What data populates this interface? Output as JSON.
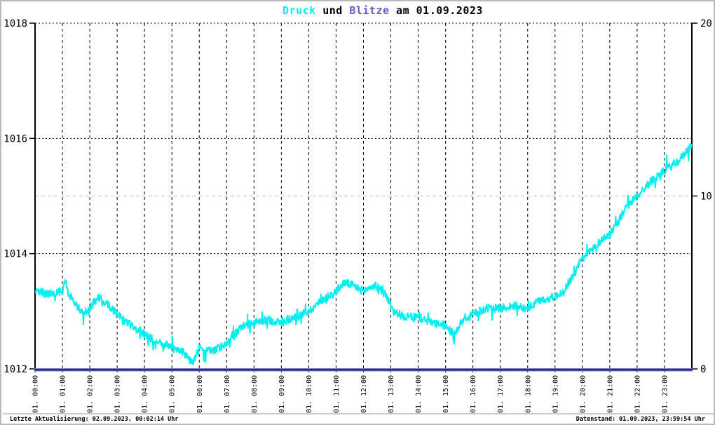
{
  "window": {
    "background": "#ffffff",
    "border_color": "#b9b9b9"
  },
  "title": {
    "druck": "Druck",
    "und": " und ",
    "blitze": "Blitze",
    "date": " am 01.09.2023",
    "druck_color": "#00EFEF",
    "blitze_color": "#6A5ACD"
  },
  "footer": {
    "left": "Letzte Aktualisierung: 02.09.2023, 00:02:14 Uhr",
    "right": "Datenstand: 01.09.2023, 23:59:54 Uhr"
  },
  "chart_data": {
    "type": "line",
    "title": "Druck und Blitze am 01.09.2023",
    "x_axis": {
      "tick_labels": [
        "01. 00:00",
        "01. 01:00",
        "01. 02:00",
        "01. 03:00",
        "01. 04:00",
        "01. 05:00",
        "01. 06:00",
        "01. 07:00",
        "01. 08:00",
        "01. 09:00",
        "01. 10:00",
        "01. 11:00",
        "01. 12:00",
        "01. 13:00",
        "01. 14:00",
        "01. 15:00",
        "01. 16:00",
        "01. 17:00",
        "01. 18:00",
        "01. 19:00",
        "01. 20:00",
        "01. 21:00",
        "01. 22:00",
        "01. 23:00"
      ],
      "hours_span": 24
    },
    "y_left": {
      "lim": [
        1012,
        1018
      ],
      "ticks": [
        1012,
        1014,
        1016,
        1018
      ]
    },
    "y_right": {
      "lim": [
        0,
        20
      ],
      "ticks": [
        0,
        10,
        20
      ]
    },
    "grid": {
      "vertical": "black dashed each hour",
      "horizontal": "black dotted at left ticks",
      "right_mid_gray_at": 10,
      "gray_color": "#c9c9c9"
    },
    "series": [
      {
        "name": "Druck",
        "axis": "left",
        "color": "#00EFEF",
        "style": "noisy minute-resolution line",
        "anchor_hours": [
          0,
          0.5,
          1.0,
          1.08,
          1.3,
          1.75,
          2.0,
          2.3,
          2.6,
          3.0,
          3.5,
          4.0,
          4.5,
          5.0,
          5.4,
          5.75,
          6.0,
          6.5,
          7.0,
          7.3,
          7.6,
          8.0,
          8.5,
          9.0,
          9.5,
          10.0,
          10.5,
          11.0,
          11.3,
          11.6,
          12.0,
          12.4,
          12.8,
          13.1,
          13.5,
          14.0,
          14.5,
          15.0,
          15.3,
          15.6,
          16.0,
          16.5,
          17.0,
          17.5,
          18.0,
          18.5,
          19.0,
          19.3,
          19.7,
          20.0,
          20.5,
          21.0,
          21.3,
          21.6,
          22.0,
          22.5,
          23.0,
          23.5,
          24.0
        ],
        "anchor_values": [
          1013.35,
          1013.3,
          1013.35,
          1013.55,
          1013.25,
          1012.95,
          1013.05,
          1013.25,
          1013.15,
          1012.95,
          1012.75,
          1012.6,
          1012.45,
          1012.4,
          1012.3,
          1012.1,
          1012.35,
          1012.3,
          1012.45,
          1012.6,
          1012.75,
          1012.8,
          1012.85,
          1012.8,
          1012.9,
          1013.0,
          1013.2,
          1013.35,
          1013.5,
          1013.45,
          1013.35,
          1013.45,
          1013.3,
          1013.0,
          1012.9,
          1012.9,
          1012.8,
          1012.75,
          1012.6,
          1012.8,
          1012.95,
          1013.05,
          1013.05,
          1013.1,
          1013.05,
          1013.2,
          1013.25,
          1013.35,
          1013.65,
          1013.9,
          1014.15,
          1014.35,
          1014.55,
          1014.8,
          1015.0,
          1015.25,
          1015.45,
          1015.6,
          1015.9
        ]
      },
      {
        "name": "Blitze",
        "axis": "right",
        "color": "#26269B",
        "style": "flat line",
        "anchor_hours": [
          0,
          24
        ],
        "anchor_values": [
          0,
          0
        ]
      }
    ],
    "legend_position": "none"
  }
}
